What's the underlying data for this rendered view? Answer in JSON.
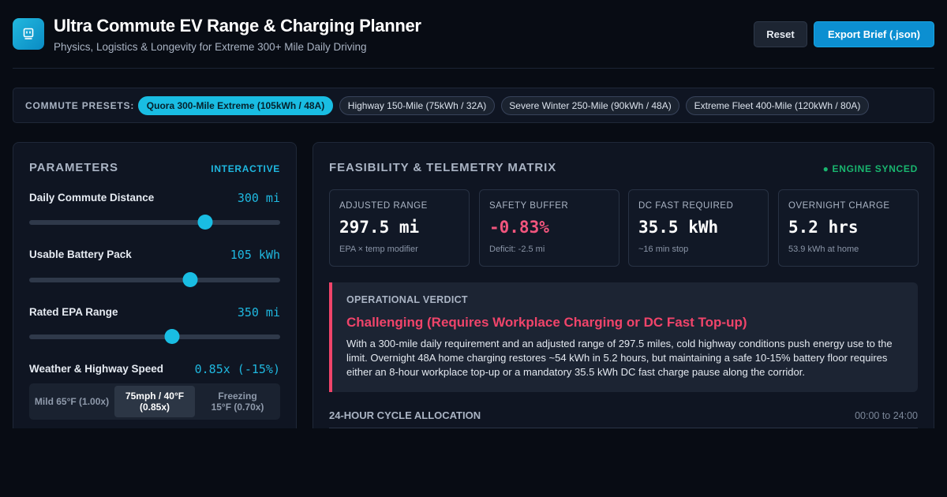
{
  "header": {
    "title": "Ultra Commute EV Range & Charging Planner",
    "subtitle": "Physics, Logistics & Longevity for Extreme 300+ Mile Daily Driving",
    "reset_label": "Reset",
    "export_label": "Export Brief (.json)"
  },
  "presets": {
    "label": "COMMUTE PRESETS:",
    "items": [
      {
        "label": "Quora 300-Mile Extreme (105kWh / 48A)",
        "active": true
      },
      {
        "label": "Highway 150-Mile (75kWh / 32A)",
        "active": false
      },
      {
        "label": "Severe Winter 250-Mile (90kWh / 48A)",
        "active": false
      },
      {
        "label": "Extreme Fleet 400-Mile (120kWh / 80A)",
        "active": false
      }
    ]
  },
  "parameters": {
    "title": "PARAMETERS",
    "tag": "INTERACTIVE",
    "commute": {
      "label": "Daily Commute Distance",
      "value": "300 mi",
      "fraction": 0.7
    },
    "battery": {
      "label": "Usable Battery Pack",
      "value": "105 kWh",
      "fraction": 0.64
    },
    "epa": {
      "label": "Rated EPA Range",
      "value": "350 mi",
      "fraction": 0.57
    },
    "weather": {
      "label": "Weather & Highway Speed",
      "value": "0.85x (-15%)",
      "options": [
        {
          "label": "Mild 65°F (1.00x)",
          "active": false
        },
        {
          "label": "75mph / 40°F (0.85x)",
          "active": true
        },
        {
          "label": "Freezing 15°F (0.70x)",
          "active": false
        }
      ]
    }
  },
  "matrix": {
    "title": "FEASIBILITY & TELEMETRY MATRIX",
    "status": "● ENGINE SYNCED",
    "cards": [
      {
        "label": "ADJUSTED RANGE",
        "value": "297.5 mi",
        "sub": "EPA × temp modifier"
      },
      {
        "label": "SAFETY BUFFER",
        "value": "-0.83%",
        "sub": "Deficit: -2.5 mi"
      },
      {
        "label": "DC FAST REQUIRED",
        "value": "35.5 kWh",
        "sub": "~16 min stop"
      },
      {
        "label": "OVERNIGHT CHARGE",
        "value": "5.2 hrs",
        "sub": "53.9 kWh at home"
      }
    ],
    "verdict": {
      "label": "OPERATIONAL VERDICT",
      "title": "Challenging (Requires Workplace Charging or DC Fast Top-up)",
      "body": "With a 300-mile daily requirement and an adjusted range of 297.5 miles, cold highway conditions push energy use to the limit. Overnight 48A home charging restores ~54 kWh in 5.2 hours, but maintaining a safe 10-15% battery floor requires either an 8-hour workplace top-up or a mandatory 35.5 kWh DC fast charge pause along the corridor."
    },
    "cycle": {
      "label": "24-HOUR CYCLE ALLOCATION",
      "range": "00:00 to 24:00"
    }
  },
  "colors": {
    "accent": "#19bde3",
    "danger": "#f0446a",
    "success": "#19b66f"
  }
}
